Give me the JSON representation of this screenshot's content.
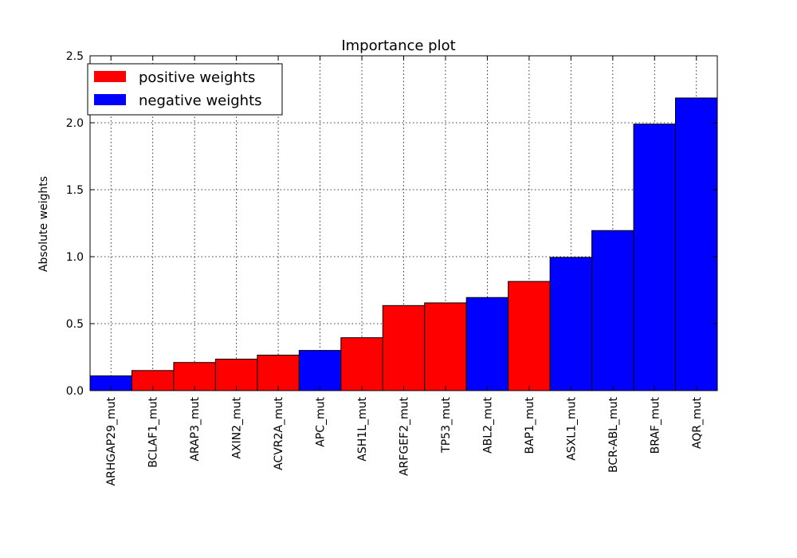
{
  "chart_data": {
    "type": "bar",
    "title": "Importance plot",
    "xlabel": "",
    "ylabel": "Absolute weights",
    "ylim": [
      0,
      2.5
    ],
    "yticks": [
      "0.0",
      "0.5",
      "1.0",
      "1.5",
      "2.0",
      "2.5"
    ],
    "grid": true,
    "legend_position": "top-left",
    "legend": [
      {
        "label": "positive weights",
        "color": "#ff0000"
      },
      {
        "label": "negative weights",
        "color": "#0000ff"
      }
    ],
    "categories": [
      "ARHGAP29_mut",
      "BCLAF1_mut",
      "ARAP3_mut",
      "AXIN2_mut",
      "ACVR2A_mut",
      "APC_mut",
      "ASH1L_mut",
      "ARFGEF2_mut",
      "TP53_mut",
      "ABL2_mut",
      "BAP1_mut",
      "ASXL1_mut",
      "BCR-ABL_mut",
      "BRAF_mut",
      "AQR_mut"
    ],
    "values": [
      0.11,
      0.15,
      0.21,
      0.235,
      0.265,
      0.3,
      0.395,
      0.635,
      0.655,
      0.695,
      0.815,
      0.995,
      1.195,
      1.99,
      2.185
    ],
    "signs": [
      "negative",
      "positive",
      "positive",
      "positive",
      "positive",
      "negative",
      "positive",
      "positive",
      "positive",
      "negative",
      "positive",
      "negative",
      "negative",
      "negative",
      "negative"
    ]
  }
}
